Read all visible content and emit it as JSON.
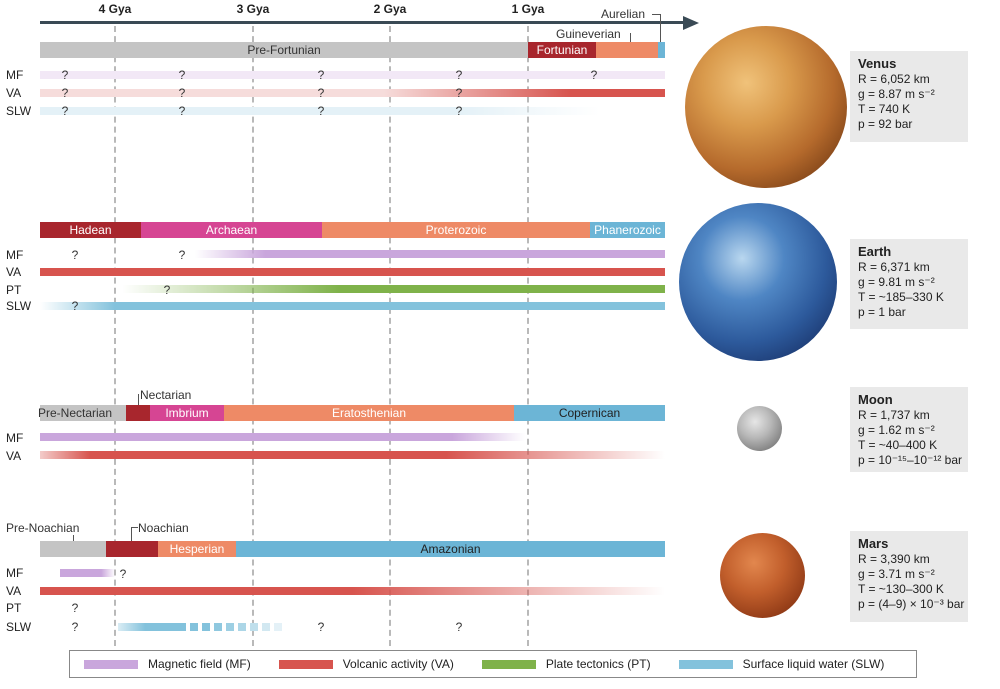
{
  "axis": {
    "ticks": [
      {
        "label": "4 Gya",
        "gya": 4
      },
      {
        "label": "3 Gya",
        "gya": 3
      },
      {
        "label": "2 Gya",
        "gya": 2
      },
      {
        "label": "1 Gya",
        "gya": 1
      }
    ]
  },
  "colors": {
    "MF": "#c9a6dc",
    "VA": "#d7544e",
    "PT": "#7fb24a",
    "SLW": "#83c2dc",
    "pre": "#c4c4c4",
    "dark_red": "#a8262d",
    "magenta": "#d64593",
    "orange": "#ee8a66",
    "blue": "#6cb5d6"
  },
  "venus": {
    "eras": {
      "pre_fortunian": "Pre-Fortunian",
      "fortunian": "Fortunian",
      "guineverian": "Guineverian",
      "aurelian": "Aurelian"
    },
    "rows": {
      "mf": "MF",
      "va": "VA",
      "slw": "SLW"
    },
    "q": "?",
    "card": {
      "name": "Venus",
      "r": "R = 6,052 km",
      "g": "g = 8.87 m s⁻²",
      "t": "T = 740 K",
      "p": "p = 92 bar"
    }
  },
  "earth": {
    "eras": {
      "hadean": "Hadean",
      "archaean": "Archaean",
      "proterozoic": "Proterozoic",
      "phanerozoic": "Phanerozoic"
    },
    "rows": {
      "mf": "MF",
      "va": "VA",
      "pt": "PT",
      "slw": "SLW"
    },
    "q": "?",
    "card": {
      "name": "Earth",
      "r": "R = 6,371 km",
      "g": "g = 9.81 m s⁻²",
      "t": "T = ~185–330 K",
      "p": "p = 1 bar"
    }
  },
  "moon": {
    "eras": {
      "pre_nectarian": "Pre-Nectarian",
      "nectarian": "Nectarian",
      "imbrium": "Imbrium",
      "eratosthenian": "Eratosthenian",
      "copernican": "Copernican"
    },
    "rows": {
      "mf": "MF",
      "va": "VA"
    },
    "card": {
      "name": "Moon",
      "r": "R = 1,737 km",
      "g": "g = 1.62 m s⁻²",
      "t": "T = ~40–400 K",
      "p": "p = 10⁻¹⁵–10⁻¹² bar"
    }
  },
  "mars": {
    "eras": {
      "pre_noachian": "Pre-Noachian",
      "noachian": "Noachian",
      "hesperian": "Hesperian",
      "amazonian": "Amazonian"
    },
    "rows": {
      "mf": "MF",
      "va": "VA",
      "pt": "PT",
      "slw": "SLW"
    },
    "q": "?",
    "card": {
      "name": "Mars",
      "r": "R = 3,390 km",
      "g": "g = 3.71 m s⁻²",
      "t": "T = ~130–300 K",
      "p": "p = (4–9) × 10⁻³ bar"
    }
  },
  "legend": {
    "mf": "Magnetic field (MF)",
    "va": "Volcanic activity (VA)",
    "pt": "Plate tectonics (PT)",
    "slw": "Surface liquid water (SLW)"
  }
}
